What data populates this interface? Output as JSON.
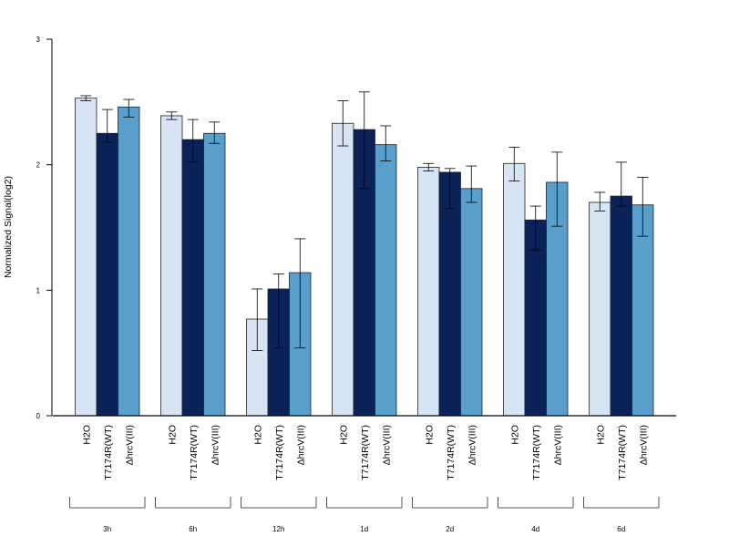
{
  "chart_data": {
    "type": "bar",
    "ylabel": "Normalized Signal(log2)",
    "ylim": [
      0,
      3
    ],
    "yticks": [
      "0",
      "1",
      "2",
      "3"
    ],
    "groups": [
      "3h",
      "6h",
      "12h",
      "1d",
      "2d",
      "4d",
      "6d"
    ],
    "series": [
      {
        "name": "H2O",
        "color": "#d6e4f3",
        "values": [
          2.53,
          2.39,
          0.77,
          2.33,
          1.98,
          2.01,
          1.7
        ],
        "err_low": [
          2.51,
          2.36,
          0.52,
          2.15,
          1.95,
          1.87,
          1.63
        ],
        "err_high": [
          2.55,
          2.42,
          1.01,
          2.51,
          2.01,
          2.14,
          1.78
        ]
      },
      {
        "name": "T7174R(WT)",
        "color": "#0b2259",
        "values": [
          2.25,
          2.2,
          1.01,
          2.28,
          1.94,
          1.56,
          1.75
        ],
        "err_low": [
          2.18,
          2.02,
          0.54,
          1.81,
          1.65,
          1.32,
          1.67
        ],
        "err_high": [
          2.44,
          2.36,
          1.13,
          2.58,
          1.97,
          1.67,
          2.02
        ]
      },
      {
        "name": "ΔhrcV(III)",
        "color": "#5a9ecb",
        "values": [
          2.46,
          2.25,
          1.14,
          2.16,
          1.81,
          1.86,
          1.68
        ],
        "err_low": [
          2.38,
          2.17,
          0.54,
          2.03,
          1.7,
          1.51,
          1.43
        ],
        "err_high": [
          2.52,
          2.34,
          1.41,
          2.31,
          1.99,
          2.1,
          1.9
        ]
      }
    ]
  }
}
